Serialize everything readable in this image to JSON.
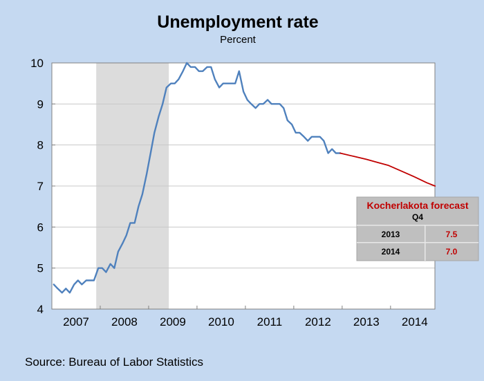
{
  "chart_data": {
    "type": "line",
    "title": "Unemployment rate",
    "subtitle": "Percent",
    "source": "Source: Bureau of Labor Statistics",
    "ylim": [
      4,
      10
    ],
    "y_ticks": [
      "4",
      "5",
      "6",
      "7",
      "8",
      "9",
      "10"
    ],
    "xlim": [
      2007.0,
      2014.917
    ],
    "x_tick_labels": [
      "2007",
      "2008",
      "2009",
      "2010",
      "2011",
      "2012",
      "2013",
      "2014"
    ],
    "grid": true,
    "recession_shading": {
      "start": 2007.917,
      "end": 2009.417
    },
    "series": [
      {
        "role": "actual",
        "color": "#4f81bd",
        "points": [
          [
            2007.04,
            4.6
          ],
          [
            2007.12,
            4.5
          ],
          [
            2007.21,
            4.4
          ],
          [
            2007.29,
            4.5
          ],
          [
            2007.37,
            4.4
          ],
          [
            2007.46,
            4.6
          ],
          [
            2007.54,
            4.7
          ],
          [
            2007.62,
            4.6
          ],
          [
            2007.71,
            4.7
          ],
          [
            2007.79,
            4.7
          ],
          [
            2007.87,
            4.7
          ],
          [
            2007.96,
            5.0
          ],
          [
            2008.04,
            5.0
          ],
          [
            2008.12,
            4.9
          ],
          [
            2008.21,
            5.1
          ],
          [
            2008.29,
            5.0
          ],
          [
            2008.37,
            5.4
          ],
          [
            2008.46,
            5.6
          ],
          [
            2008.54,
            5.8
          ],
          [
            2008.62,
            6.1
          ],
          [
            2008.71,
            6.1
          ],
          [
            2008.79,
            6.5
          ],
          [
            2008.87,
            6.8
          ],
          [
            2008.96,
            7.3
          ],
          [
            2009.04,
            7.8
          ],
          [
            2009.12,
            8.3
          ],
          [
            2009.21,
            8.7
          ],
          [
            2009.29,
            9.0
          ],
          [
            2009.37,
            9.4
          ],
          [
            2009.46,
            9.5
          ],
          [
            2009.54,
            9.5
          ],
          [
            2009.62,
            9.6
          ],
          [
            2009.71,
            9.8
          ],
          [
            2009.79,
            10.0
          ],
          [
            2009.87,
            9.9
          ],
          [
            2009.96,
            9.9
          ],
          [
            2010.04,
            9.8
          ],
          [
            2010.12,
            9.8
          ],
          [
            2010.21,
            9.9
          ],
          [
            2010.29,
            9.9
          ],
          [
            2010.37,
            9.6
          ],
          [
            2010.46,
            9.4
          ],
          [
            2010.54,
            9.5
          ],
          [
            2010.62,
            9.5
          ],
          [
            2010.71,
            9.5
          ],
          [
            2010.79,
            9.5
          ],
          [
            2010.87,
            9.8
          ],
          [
            2010.96,
            9.3
          ],
          [
            2011.04,
            9.1
          ],
          [
            2011.12,
            9.0
          ],
          [
            2011.21,
            8.9
          ],
          [
            2011.29,
            9.0
          ],
          [
            2011.37,
            9.0
          ],
          [
            2011.46,
            9.1
          ],
          [
            2011.54,
            9.0
          ],
          [
            2011.62,
            9.0
          ],
          [
            2011.71,
            9.0
          ],
          [
            2011.79,
            8.9
          ],
          [
            2011.87,
            8.6
          ],
          [
            2011.96,
            8.5
          ],
          [
            2012.04,
            8.3
          ],
          [
            2012.12,
            8.3
          ],
          [
            2012.21,
            8.2
          ],
          [
            2012.29,
            8.1
          ],
          [
            2012.37,
            8.2
          ],
          [
            2012.46,
            8.2
          ],
          [
            2012.54,
            8.2
          ],
          [
            2012.62,
            8.1
          ],
          [
            2012.71,
            7.8
          ],
          [
            2012.79,
            7.9
          ],
          [
            2012.87,
            7.8
          ],
          [
            2012.96,
            7.8
          ]
        ]
      },
      {
        "role": "forecast",
        "color": "#c00000",
        "points": [
          [
            2012.96,
            7.8
          ],
          [
            2013.25,
            7.72
          ],
          [
            2013.5,
            7.65
          ],
          [
            2013.75,
            7.57
          ],
          [
            2013.96,
            7.5
          ],
          [
            2014.25,
            7.35
          ],
          [
            2014.5,
            7.22
          ],
          [
            2014.75,
            7.08
          ],
          [
            2014.92,
            7.0
          ]
        ]
      }
    ],
    "forecast_table": {
      "title": "Kocherlakota forecast",
      "subtitle": "Q4",
      "title_color": "#c00000",
      "value_color": "#c00000",
      "rows": [
        {
          "year": "2013",
          "value": "7.5"
        },
        {
          "year": "2014",
          "value": "7.0"
        }
      ]
    }
  }
}
